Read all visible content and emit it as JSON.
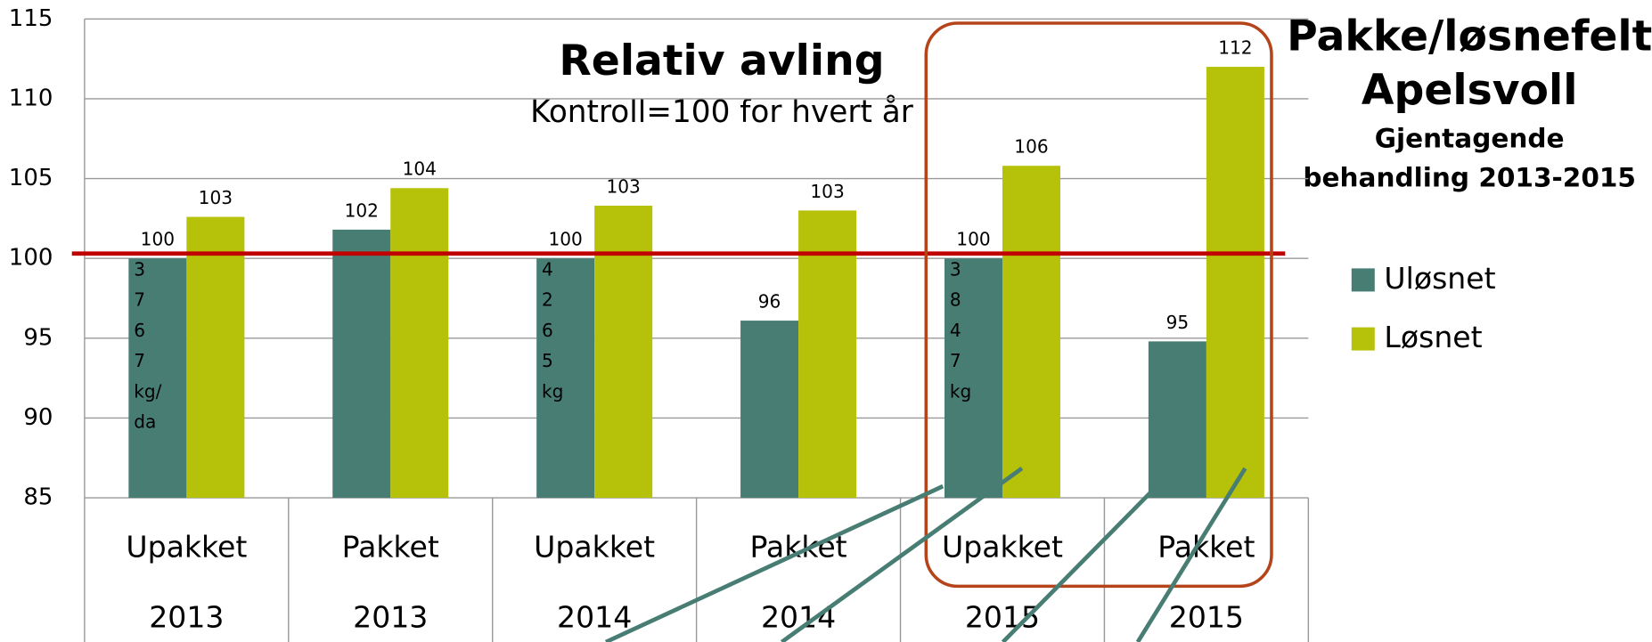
{
  "chart_data": {
    "type": "bar",
    "title": "Relativ avling",
    "subtitle": "Kontroll=100 for hvert år",
    "side_title": [
      "Pakke/løsnefelt",
      "Apelsvoll",
      "Gjentagende",
      "behandling 2013-2015"
    ],
    "categories": [
      "Upakket",
      "Pakket",
      "Upakket",
      "Pakket",
      "Upakket",
      "Pakket"
    ],
    "category_groups": [
      "2013",
      "2013",
      "2014",
      "2014",
      "2015",
      "2015"
    ],
    "series": [
      {
        "name": "Uløsnet",
        "color": "#487d74",
        "values": [
          100,
          101.8,
          100,
          96.1,
          100,
          94.8
        ],
        "value_labels": [
          "100",
          "102",
          "100",
          "96",
          "100",
          "95"
        ]
      },
      {
        "name": "Løsnet",
        "color": "#b6c10a",
        "values": [
          102.6,
          104.4,
          103.3,
          103,
          105.8,
          112
        ],
        "value_labels": [
          "103",
          "104",
          "103",
          "103",
          "106",
          "112"
        ]
      }
    ],
    "bar_notes": [
      [
        "3",
        "7",
        "6",
        "7",
        "kg/",
        "da"
      ],
      null,
      [
        "4",
        "2",
        "6",
        "5",
        "kg"
      ],
      null,
      [
        "3",
        "8",
        "4",
        "7",
        "kg"
      ],
      null
    ],
    "reference_line": {
      "value": 100.3,
      "color": "#c00000"
    },
    "ylim": [
      85,
      115
    ],
    "yticks": [
      85,
      90,
      95,
      100,
      105,
      110,
      115
    ],
    "grid": true
  }
}
